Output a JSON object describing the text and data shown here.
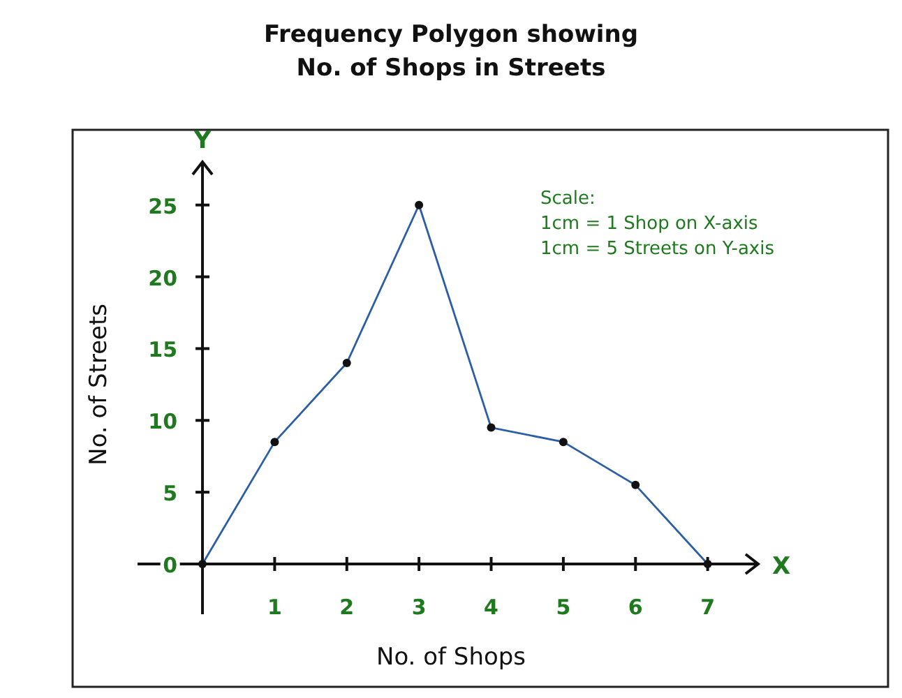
{
  "chart_data": {
    "type": "line",
    "title": "Frequency Polygon showing\nNo. of Shops in Streets",
    "xlabel": "No. of Shops",
    "ylabel": "No. of Streets",
    "x": [
      0,
      1,
      2,
      3,
      4,
      5,
      6,
      7
    ],
    "series": [
      {
        "color": "#2b5ea7",
        "values": [
          0,
          8.5,
          14,
          25,
          9.5,
          8.5,
          5.5,
          0
        ]
      }
    ],
    "xlim": [
      -0.9,
      7.7
    ],
    "xticks": [
      1,
      2,
      3,
      4,
      5,
      6,
      7
    ],
    "ylim": [
      -3.5,
      28
    ],
    "yticks": [
      0,
      5,
      10,
      15,
      20,
      25
    ],
    "annotations": [
      "Scale:",
      "1cm = 1 Shop on X-axis",
      "1cm = 5 Streets on Y-axis",
      "X",
      "Y"
    ],
    "grid": false,
    "marker": "circle",
    "line_style": "solid"
  }
}
